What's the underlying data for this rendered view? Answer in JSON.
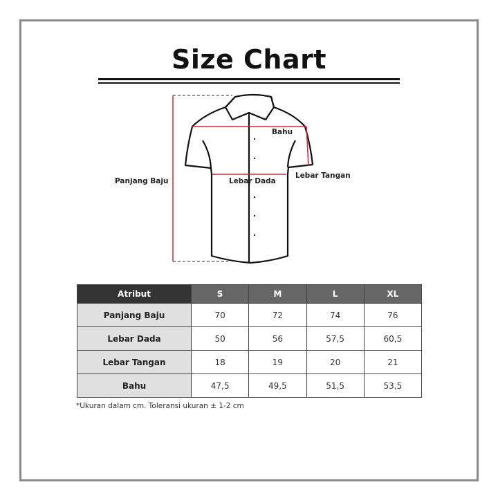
{
  "title": "Size Chart",
  "diagram": {
    "labels": {
      "bahu": "Bahu",
      "lebar_tangan": "Lebar Tangan",
      "lebar_dada": "Lebar Dada",
      "panjang_baju": "Panjang Baju"
    },
    "measure_color": "#e0203a"
  },
  "table": {
    "headers": [
      "Atribut",
      "S",
      "M",
      "L",
      "XL"
    ],
    "rows": [
      {
        "attr": "Panjang Baju",
        "values": [
          "70",
          "72",
          "74",
          "76"
        ]
      },
      {
        "attr": "Lebar Dada",
        "values": [
          "50",
          "56",
          "57,5",
          "60,5"
        ]
      },
      {
        "attr": "Lebar Tangan",
        "values": [
          "18",
          "19",
          "20",
          "21"
        ]
      },
      {
        "attr": "Bahu",
        "values": [
          "47,5",
          "49,5",
          "51,5",
          "53,5"
        ]
      }
    ]
  },
  "note": "*Ukuran dalam cm. Toleransi ukuran ± 1-2 cm"
}
